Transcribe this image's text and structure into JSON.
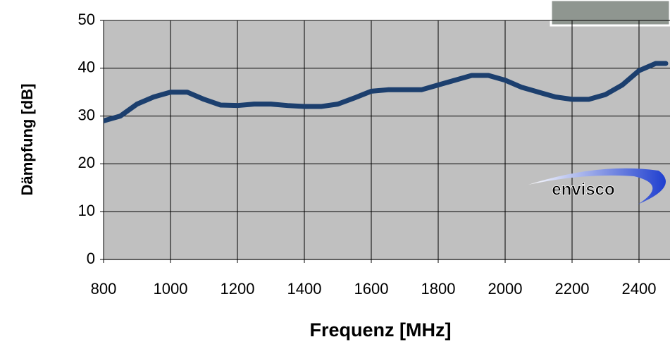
{
  "chart_data": {
    "type": "line",
    "x_label": "Frequenz [MHz]",
    "y_label": "Dämpfung  [dB]",
    "logo": "envisco",
    "x": [
      800,
      850,
      900,
      950,
      1000,
      1050,
      1100,
      1150,
      1200,
      1250,
      1300,
      1350,
      1400,
      1450,
      1500,
      1550,
      1600,
      1650,
      1700,
      1750,
      1800,
      1850,
      1900,
      1950,
      2000,
      2050,
      2100,
      2150,
      2200,
      2250,
      2300,
      2350,
      2400,
      2450,
      2480
    ],
    "series": [
      {
        "color": "#1c3f6e",
        "values": [
          29,
          30,
          32.5,
          34,
          35,
          35,
          33.5,
          32.3,
          32.2,
          32.5,
          32.5,
          32.2,
          32,
          32,
          32.5,
          33.8,
          35.2,
          35.5,
          35.5,
          35.5,
          36.5,
          37.5,
          38.5,
          38.5,
          37.5,
          36,
          35,
          34,
          33.5,
          33.5,
          34.5,
          36.5,
          39.5,
          41,
          41
        ]
      }
    ],
    "xlim": [
      800,
      2500
    ],
    "ylim": [
      0,
      50
    ],
    "xticks": [
      800,
      1000,
      1200,
      1400,
      1600,
      1800,
      2000,
      2200,
      2400
    ],
    "yticks": [
      0,
      10,
      20,
      30,
      40,
      50
    ],
    "grid": true
  }
}
